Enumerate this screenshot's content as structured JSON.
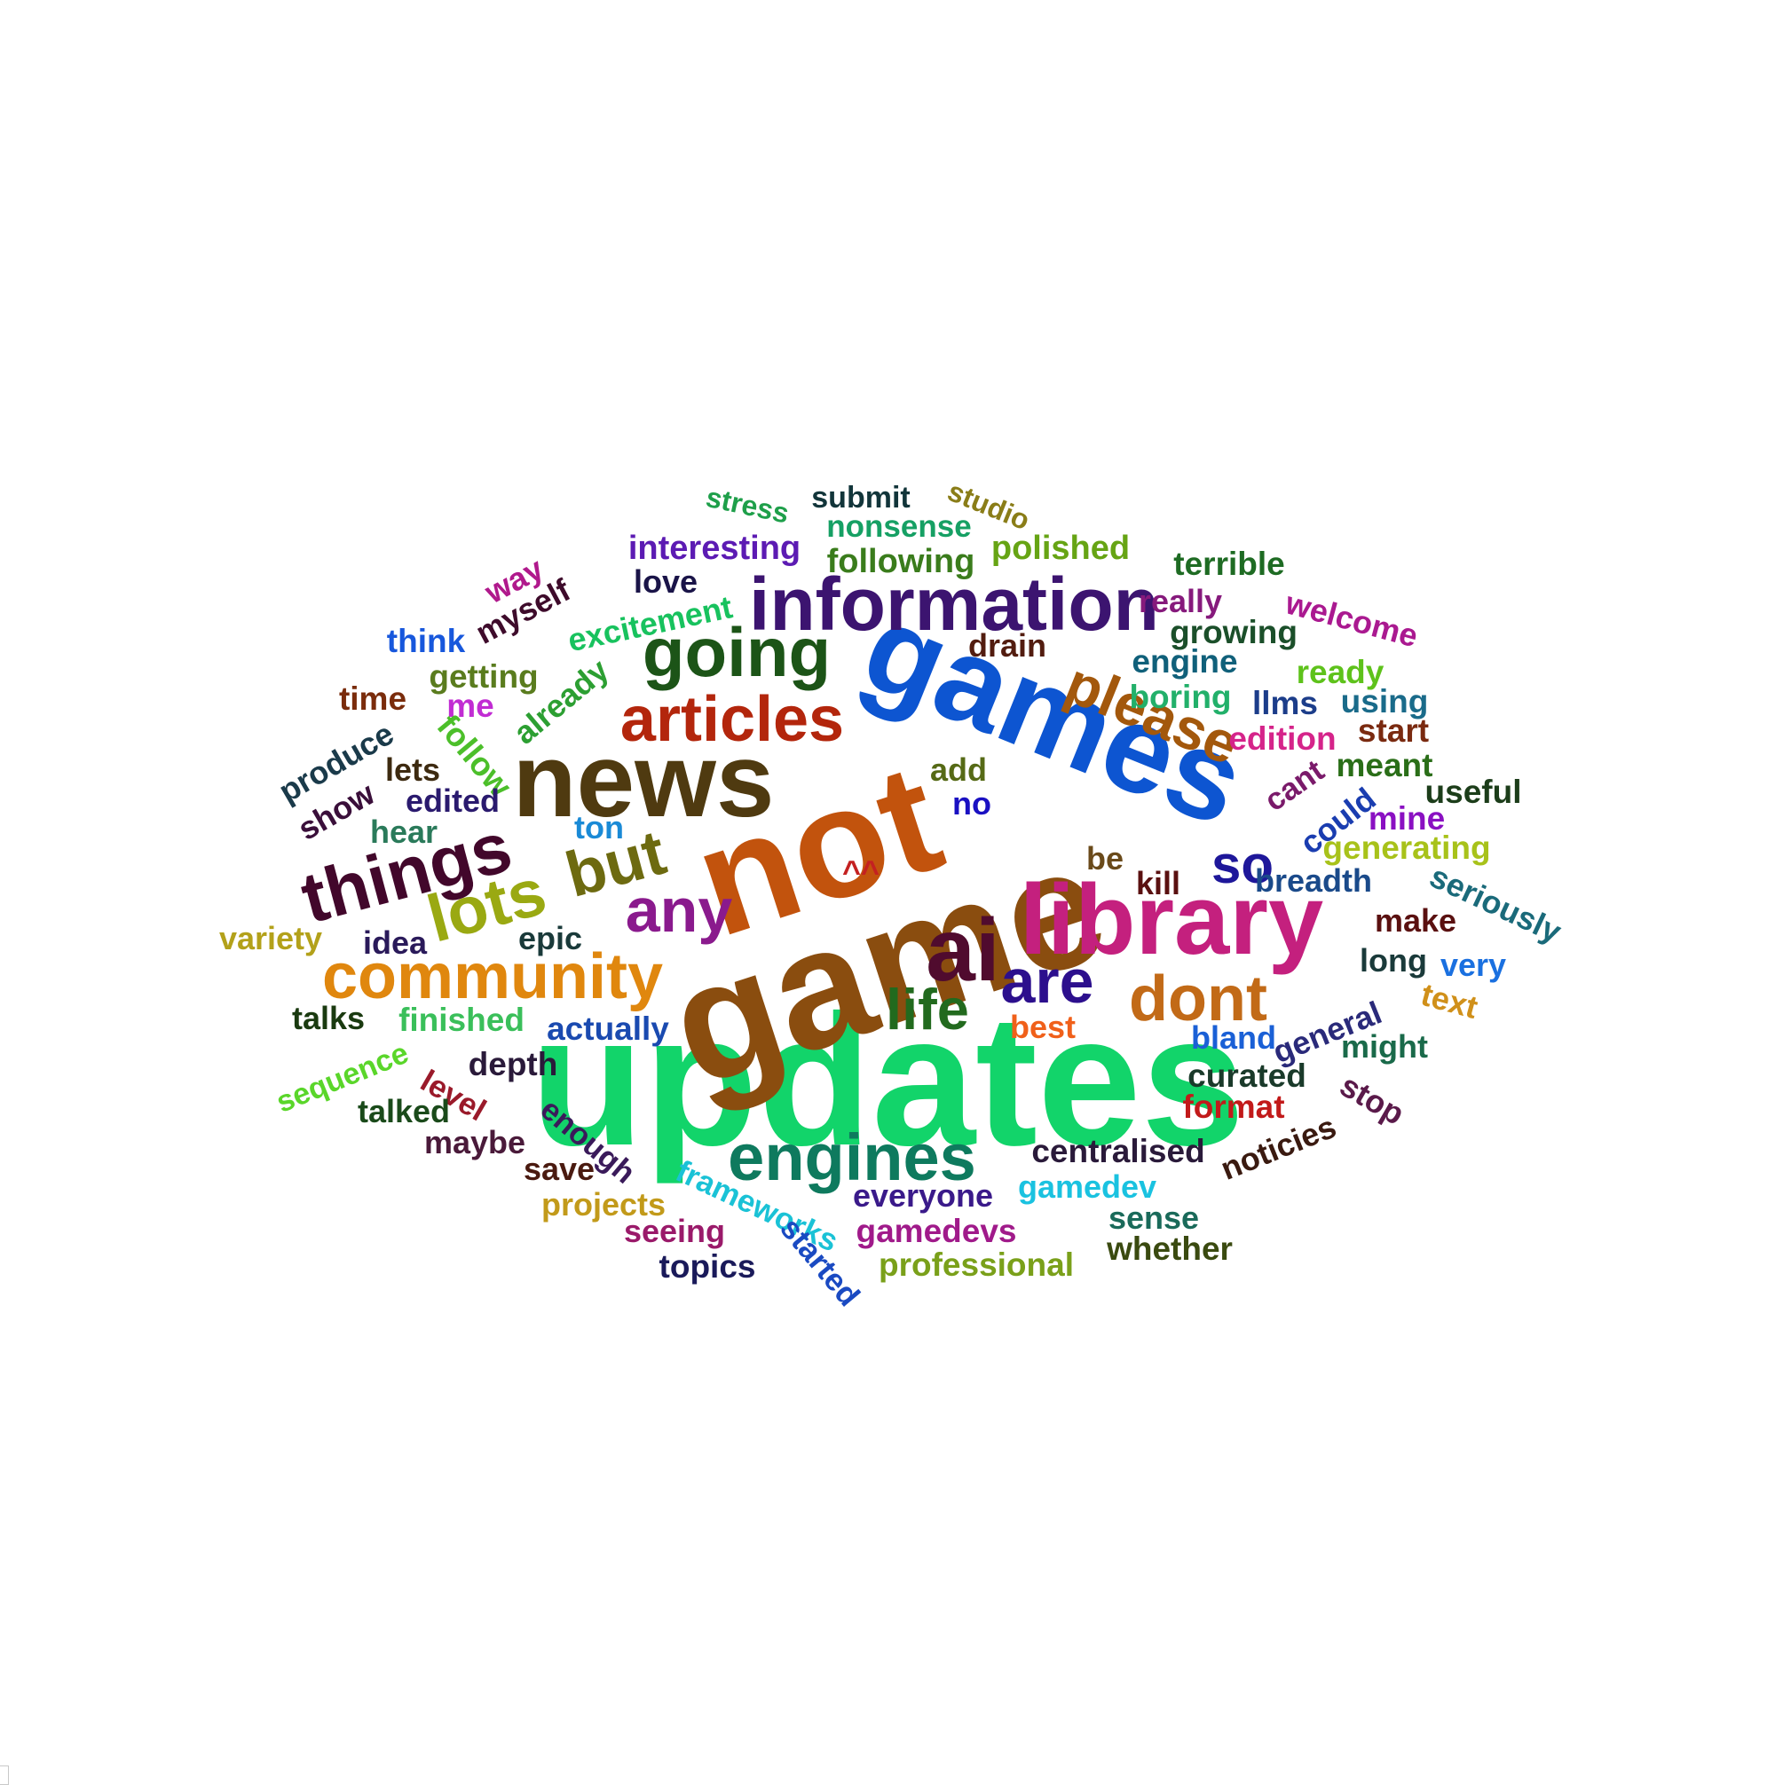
{
  "word_cloud": {
    "words": [
      {
        "text": "updates",
        "color": "#12d46a"
      },
      {
        "text": "game",
        "color": "#8a4d0f"
      },
      {
        "text": "not",
        "color": "#c2530d"
      },
      {
        "text": "games",
        "color": "#0d55d1"
      },
      {
        "text": "news",
        "color": "#4f3a10"
      },
      {
        "text": "library",
        "color": "#c4207e"
      },
      {
        "text": "information",
        "color": "#3c1470"
      },
      {
        "text": "community",
        "color": "#e0870e"
      },
      {
        "text": "things",
        "color": "#42072b"
      },
      {
        "text": "engines",
        "color": "#0e7a5e"
      },
      {
        "text": "going",
        "color": "#1c5417"
      },
      {
        "text": "articles",
        "color": "#b3260c"
      },
      {
        "text": "ai",
        "color": "#500b2e"
      },
      {
        "text": "please",
        "color": "#a3580c"
      },
      {
        "text": "lots",
        "color": "#9aa912"
      },
      {
        "text": "but",
        "color": "#6d6a10"
      },
      {
        "text": "any",
        "color": "#8a1a8d"
      },
      {
        "text": "dont",
        "color": "#c26a17"
      },
      {
        "text": "are",
        "color": "#2c0f8d"
      },
      {
        "text": "life",
        "color": "#226a1e"
      },
      {
        "text": "so",
        "color": "#1e179a"
      },
      {
        "text": "^^",
        "color": "#c42121"
      },
      {
        "text": "stress",
        "color": "#1e9f4a"
      },
      {
        "text": "submit",
        "color": "#12353a"
      },
      {
        "text": "studio",
        "color": "#8a7d18"
      },
      {
        "text": "nonsense",
        "color": "#16a064"
      },
      {
        "text": "interesting",
        "color": "#5c1bb3"
      },
      {
        "text": "following",
        "color": "#3a7c1c"
      },
      {
        "text": "polished",
        "color": "#66a414"
      },
      {
        "text": "terrible",
        "color": "#1e6b23"
      },
      {
        "text": "love",
        "color": "#1a1448"
      },
      {
        "text": "way",
        "color": "#b0198c"
      },
      {
        "text": "myself",
        "color": "#3e0b2b"
      },
      {
        "text": "excitement",
        "color": "#18c25e"
      },
      {
        "text": "really",
        "color": "#861a7c"
      },
      {
        "text": "welcome",
        "color": "#aa1990"
      },
      {
        "text": "think",
        "color": "#1757dc"
      },
      {
        "text": "growing",
        "color": "#1b4f2a"
      },
      {
        "text": "drain",
        "color": "#521c0f"
      },
      {
        "text": "engine",
        "color": "#10607a"
      },
      {
        "text": "ready",
        "color": "#5ec21b"
      },
      {
        "text": "getting",
        "color": "#5a7c1e"
      },
      {
        "text": "already",
        "color": "#2c9f32"
      },
      {
        "text": "time",
        "color": "#7a2c0c"
      },
      {
        "text": "me",
        "color": "#c12cd3"
      },
      {
        "text": "boring",
        "color": "#22b06a"
      },
      {
        "text": "llms",
        "color": "#1c3d8a"
      },
      {
        "text": "using",
        "color": "#1a6b8a"
      },
      {
        "text": "follow",
        "color": "#4cbf2a"
      },
      {
        "text": "produce",
        "color": "#1a3a4a"
      },
      {
        "text": "edition",
        "color": "#d5248a"
      },
      {
        "text": "start",
        "color": "#7a2a10"
      },
      {
        "text": "lets",
        "color": "#3d2a10"
      },
      {
        "text": "add",
        "color": "#566a16"
      },
      {
        "text": "meant",
        "color": "#2a6e18"
      },
      {
        "text": "cant",
        "color": "#7a1a6a"
      },
      {
        "text": "show",
        "color": "#3a0f3a"
      },
      {
        "text": "edited",
        "color": "#2a1a6e"
      },
      {
        "text": "no",
        "color": "#1a10c2"
      },
      {
        "text": "useful",
        "color": "#1c3d1a"
      },
      {
        "text": "could",
        "color": "#1a3db0"
      },
      {
        "text": "hear",
        "color": "#2a7a5a"
      },
      {
        "text": "ton",
        "color": "#1a8ad6"
      },
      {
        "text": "mine",
        "color": "#8a10c2"
      },
      {
        "text": "generating",
        "color": "#a8c21a"
      },
      {
        "text": "be",
        "color": "#6a4a1a"
      },
      {
        "text": "kill",
        "color": "#5a1010"
      },
      {
        "text": "breadth",
        "color": "#1a4a8a"
      },
      {
        "text": "seriously",
        "color": "#1a6a7a"
      },
      {
        "text": "variety",
        "color": "#b3a11a"
      },
      {
        "text": "idea",
        "color": "#2a1a5a"
      },
      {
        "text": "epic",
        "color": "#1a3a3a"
      },
      {
        "text": "make",
        "color": "#5a1010"
      },
      {
        "text": "long",
        "color": "#1a3a3a"
      },
      {
        "text": "very",
        "color": "#1a70e0"
      },
      {
        "text": "talks",
        "color": "#1a3a10"
      },
      {
        "text": "finished",
        "color": "#3abf5a"
      },
      {
        "text": "actually",
        "color": "#1a4ab0"
      },
      {
        "text": "best",
        "color": "#f0601a"
      },
      {
        "text": "text",
        "color": "#d0901a"
      },
      {
        "text": "bland",
        "color": "#1a60d6"
      },
      {
        "text": "general",
        "color": "#2a2a7a"
      },
      {
        "text": "might",
        "color": "#1a6a4a"
      },
      {
        "text": "sequence",
        "color": "#5ad62a"
      },
      {
        "text": "level",
        "color": "#9a1a2a"
      },
      {
        "text": "depth",
        "color": "#2a1a3a"
      },
      {
        "text": "curated",
        "color": "#1a3a2a"
      },
      {
        "text": "stop",
        "color": "#5a1a4a"
      },
      {
        "text": "talked",
        "color": "#1a4a1a"
      },
      {
        "text": "enough",
        "color": "#3a1a5a"
      },
      {
        "text": "format",
        "color": "#c21a1a"
      },
      {
        "text": "maybe",
        "color": "#4a1a3a"
      },
      {
        "text": "noticies",
        "color": "#3a1a10"
      },
      {
        "text": "save",
        "color": "#4a1a10"
      },
      {
        "text": "centralised",
        "color": "#2a1a3a"
      },
      {
        "text": "frameworks",
        "color": "#1ac2d6"
      },
      {
        "text": "projects",
        "color": "#c29a1a"
      },
      {
        "text": "everyone",
        "color": "#3a1a8a"
      },
      {
        "text": "gamedev",
        "color": "#1ac2e0"
      },
      {
        "text": "seeing",
        "color": "#9a1a6a"
      },
      {
        "text": "gamedevs",
        "color": "#a01a8a"
      },
      {
        "text": "sense",
        "color": "#1a6a5a"
      },
      {
        "text": "started",
        "color": "#1a4ac2"
      },
      {
        "text": "topics",
        "color": "#1a1a5a"
      },
      {
        "text": "professional",
        "color": "#7aa01a"
      },
      {
        "text": "whether",
        "color": "#3a4a10"
      }
    ]
  }
}
